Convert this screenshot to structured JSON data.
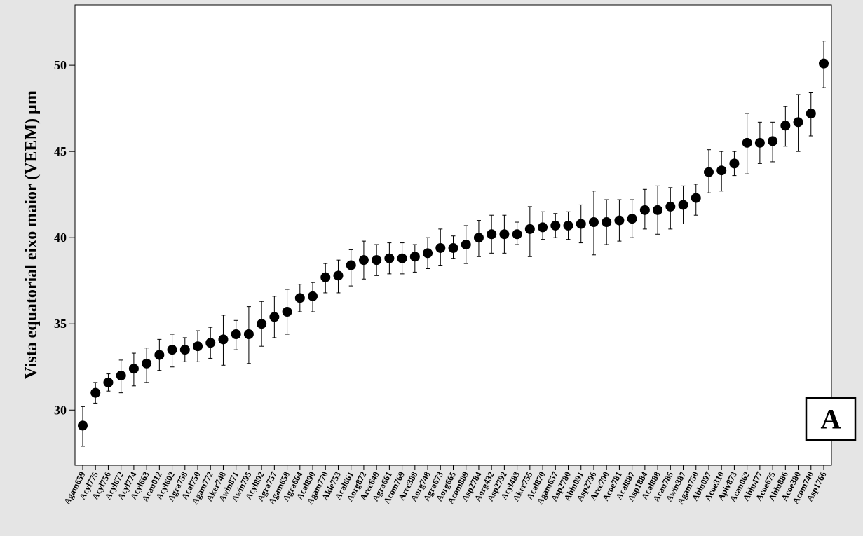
{
  "chart_data": {
    "type": "scatter",
    "subtype": "interval-plot",
    "ylabel": "Vista equatorial eixo maior (VEEM) µm",
    "xlabel": "",
    "panel_label": "A",
    "yticks": [
      30,
      35,
      40,
      45,
      50
    ],
    "ylim": [
      26.8,
      53.5
    ],
    "grid": false,
    "legend": "none",
    "colors": {
      "point": "#000000",
      "figure_background": "#e5e5e5",
      "plot_background": "#ffffff"
    },
    "categories": [
      "Agam659",
      "Acyl775",
      "Acyl756",
      "Acyl672",
      "Acyl774",
      "Acyl663",
      "Acau012",
      "Acyl602",
      "Agra758",
      "Acal750",
      "Agam772",
      "Aker748",
      "Awin871",
      "Awin795",
      "Acyl892",
      "Agra757",
      "Agam658",
      "Agra664",
      "Acal890",
      "Agam770",
      "Akle753",
      "Acal661",
      "Aorg872",
      "Arec649",
      "Agra661",
      "Acom769",
      "Arec388",
      "Aorg748",
      "Agra673",
      "Aorg665",
      "Acom889",
      "Asp2784",
      "Aorg432",
      "Asp2792",
      "Acyl483",
      "Aker755",
      "Acal870",
      "Agam657",
      "Asp2780",
      "Ablu091",
      "Asp2796",
      "Arec790",
      "Acoe781",
      "Acal887",
      "Asp1884",
      "Acal888",
      "Acau785",
      "Awin387",
      "Agam750",
      "Ablu097",
      "Acoe310",
      "Apiv873",
      "Acau062",
      "Ablu477",
      "Acoe675",
      "Ablu886",
      "Acoe380",
      "Acom740",
      "Asp1766"
    ],
    "series": [
      {
        "mean": [
          29.1,
          31.0,
          31.6,
          32.0,
          32.4,
          32.7,
          33.2,
          33.5,
          33.5,
          33.7,
          33.9,
          34.1,
          34.4,
          34.4,
          35.0,
          35.4,
          35.7,
          36.5,
          36.6,
          37.7,
          37.8,
          38.4,
          38.7,
          38.7,
          38.8,
          38.8,
          38.9,
          39.1,
          39.4,
          39.4,
          39.6,
          40.0,
          40.2,
          40.2,
          40.2,
          40.5,
          40.6,
          40.7,
          40.7,
          40.8,
          40.9,
          40.9,
          41.0,
          41.1,
          41.6,
          41.6,
          41.8,
          41.9,
          42.3,
          43.8,
          43.9,
          44.3,
          45.5,
          45.5,
          45.6,
          46.5,
          46.7,
          47.2,
          50.1
        ],
        "lower": [
          27.9,
          30.4,
          31.1,
          31.0,
          31.4,
          31.6,
          32.3,
          32.5,
          32.8,
          32.8,
          33.0,
          32.6,
          33.5,
          32.7,
          33.7,
          34.2,
          34.4,
          35.7,
          35.7,
          36.8,
          36.8,
          37.2,
          37.6,
          37.8,
          37.9,
          37.9,
          38.0,
          38.2,
          38.4,
          38.8,
          38.5,
          38.9,
          39.1,
          39.1,
          39.6,
          38.9,
          39.9,
          40.0,
          39.9,
          39.7,
          39.0,
          39.6,
          39.8,
          40.0,
          40.5,
          40.2,
          40.5,
          40.8,
          41.3,
          42.6,
          42.7,
          43.6,
          43.7,
          44.3,
          44.4,
          45.3,
          45.0,
          45.9,
          48.7
        ],
        "upper": [
          30.2,
          31.6,
          32.1,
          32.9,
          33.3,
          33.6,
          34.1,
          34.4,
          34.2,
          34.6,
          34.8,
          35.5,
          35.2,
          36.0,
          36.3,
          36.6,
          37.0,
          37.3,
          37.4,
          38.5,
          38.7,
          39.3,
          39.8,
          39.6,
          39.7,
          39.7,
          39.6,
          40.0,
          40.5,
          40.1,
          40.7,
          41.0,
          41.3,
          41.3,
          40.9,
          41.8,
          41.5,
          41.4,
          41.5,
          41.9,
          42.7,
          42.2,
          42.2,
          42.2,
          42.8,
          43.0,
          42.9,
          43.0,
          43.1,
          45.1,
          45.0,
          45.0,
          47.2,
          46.7,
          46.7,
          47.6,
          48.3,
          48.4,
          51.4
        ]
      }
    ]
  }
}
